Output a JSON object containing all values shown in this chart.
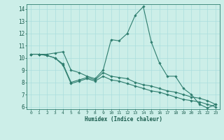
{
  "xlabel": "Humidex (Indice chaleur)",
  "background_color": "#cceee8",
  "grid_color": "#aadddd",
  "line_color": "#2e7d6e",
  "xlim": [
    -0.5,
    23.5
  ],
  "ylim": [
    5.8,
    14.4
  ],
  "yticks": [
    6,
    7,
    8,
    9,
    10,
    11,
    12,
    13,
    14
  ],
  "xticks": [
    0,
    1,
    2,
    3,
    4,
    5,
    6,
    7,
    8,
    9,
    10,
    11,
    12,
    13,
    14,
    15,
    16,
    17,
    18,
    19,
    20,
    21,
    22,
    23
  ],
  "series": [
    [
      10.3,
      10.3,
      10.3,
      10.4,
      10.5,
      9.0,
      8.8,
      8.5,
      8.3,
      9.0,
      11.5,
      11.4,
      12.0,
      13.5,
      14.2,
      11.3,
      9.6,
      8.5,
      8.5,
      7.5,
      7.0,
      6.2,
      5.9,
      6.2
    ],
    [
      10.3,
      10.3,
      10.2,
      10.0,
      9.5,
      8.0,
      8.2,
      8.4,
      8.2,
      8.8,
      8.5,
      8.4,
      8.3,
      8.0,
      7.8,
      7.7,
      7.5,
      7.3,
      7.2,
      7.0,
      6.8,
      6.7,
      6.5,
      6.2
    ],
    [
      10.3,
      10.3,
      10.2,
      10.0,
      9.4,
      7.9,
      8.1,
      8.3,
      8.1,
      8.5,
      8.2,
      8.1,
      7.9,
      7.7,
      7.5,
      7.3,
      7.2,
      7.0,
      6.8,
      6.6,
      6.5,
      6.4,
      6.2,
      6.0
    ]
  ]
}
